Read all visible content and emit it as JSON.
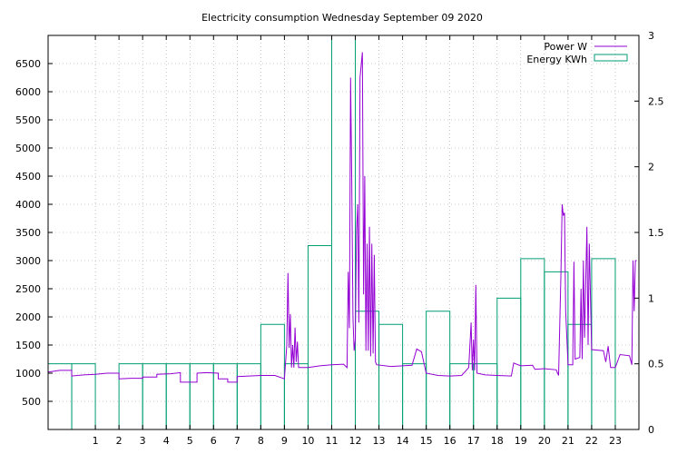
{
  "chart_data": {
    "type": "line",
    "title": "Electricity consumption Wednesday September 09 2020",
    "xlabel": "",
    "ylabel": "",
    "y2label": "",
    "grid": true,
    "legend_position": "top-right",
    "x_range": [
      -1,
      24
    ],
    "y_range": [
      0,
      7000
    ],
    "y2_range": [
      0,
      3
    ],
    "x_ticks": [
      "1",
      "2",
      "3",
      "4",
      "5",
      "6",
      "7",
      "8",
      "9",
      "10",
      "11",
      "12",
      "13",
      "14",
      "15",
      "16",
      "17",
      "18",
      "19",
      "20",
      "21",
      "22",
      "23"
    ],
    "y_ticks": [
      "500",
      "1000",
      "1500",
      "2000",
      "2500",
      "3000",
      "3500",
      "4000",
      "4500",
      "5000",
      "5500",
      "6000",
      "6500"
    ],
    "y2_ticks": [
      "0",
      "0.5",
      "1",
      "1.5",
      "2",
      "2.5",
      "3"
    ],
    "colors": {
      "power": "#9400d3",
      "energy": "#009e73",
      "grid": "#a0a0a0"
    },
    "series": [
      {
        "name": "Power W",
        "kind": "line",
        "axis": "y",
        "points": [
          [
            -1,
            1020
          ],
          [
            -0.5,
            1050
          ],
          [
            0,
            1050
          ],
          [
            0,
            950
          ],
          [
            0.5,
            970
          ],
          [
            1,
            980
          ],
          [
            1.5,
            1000
          ],
          [
            2,
            1000
          ],
          [
            2,
            900
          ],
          [
            2.5,
            910
          ],
          [
            3,
            910
          ],
          [
            3,
            930
          ],
          [
            3.6,
            930
          ],
          [
            3.6,
            980
          ],
          [
            4.2,
            990
          ],
          [
            4.6,
            1010
          ],
          [
            4.6,
            840
          ],
          [
            5,
            840
          ],
          [
            5.3,
            840
          ],
          [
            5.3,
            1000
          ],
          [
            5.7,
            1010
          ],
          [
            6.2,
            1000
          ],
          [
            6.2,
            900
          ],
          [
            6.6,
            900
          ],
          [
            6.6,
            840
          ],
          [
            7,
            840
          ],
          [
            7,
            940
          ],
          [
            7.5,
            950
          ],
          [
            8,
            960
          ],
          [
            8.6,
            960
          ],
          [
            9,
            900
          ],
          [
            9.1,
            1500
          ],
          [
            9.15,
            2780
          ],
          [
            9.2,
            1450
          ],
          [
            9.25,
            2050
          ],
          [
            9.3,
            1100
          ],
          [
            9.35,
            1500
          ],
          [
            9.4,
            1100
          ],
          [
            9.45,
            1810
          ],
          [
            9.5,
            1200
          ],
          [
            9.55,
            1560
          ],
          [
            9.6,
            1100
          ],
          [
            10,
            1100
          ],
          [
            10.5,
            1130
          ],
          [
            11,
            1150
          ],
          [
            11.5,
            1160
          ],
          [
            11.65,
            1100
          ],
          [
            11.7,
            2800
          ],
          [
            11.75,
            1800
          ],
          [
            11.8,
            6250
          ],
          [
            11.85,
            4400
          ],
          [
            11.9,
            2000
          ],
          [
            11.95,
            1400
          ],
          [
            12,
            1600
          ],
          [
            12.05,
            3500
          ],
          [
            12.1,
            4000
          ],
          [
            12.15,
            1900
          ],
          [
            12.2,
            6250
          ],
          [
            12.3,
            6700
          ],
          [
            12.35,
            2400
          ],
          [
            12.4,
            4500
          ],
          [
            12.45,
            1400
          ],
          [
            12.5,
            3300
          ],
          [
            12.55,
            1400
          ],
          [
            12.6,
            3600
          ],
          [
            12.65,
            1300
          ],
          [
            12.7,
            3300
          ],
          [
            12.75,
            1350
          ],
          [
            12.8,
            3100
          ],
          [
            12.85,
            1200
          ],
          [
            12.9,
            1150
          ],
          [
            13.5,
            1120
          ],
          [
            14,
            1130
          ],
          [
            14.4,
            1140
          ],
          [
            14.6,
            1430
          ],
          [
            14.8,
            1380
          ],
          [
            15,
            1000
          ],
          [
            15.5,
            960
          ],
          [
            16,
            950
          ],
          [
            16.5,
            960
          ],
          [
            16.8,
            1100
          ],
          [
            16.9,
            1900
          ],
          [
            16.95,
            1050
          ],
          [
            17,
            1600
          ],
          [
            17.05,
            1050
          ],
          [
            17.1,
            2570
          ],
          [
            17.15,
            1000
          ],
          [
            17.5,
            970
          ],
          [
            18,
            960
          ],
          [
            18.6,
            950
          ],
          [
            18.7,
            1180
          ],
          [
            19,
            1130
          ],
          [
            19.5,
            1140
          ],
          [
            19.6,
            1070
          ],
          [
            20,
            1080
          ],
          [
            20.5,
            1060
          ],
          [
            20.6,
            960
          ],
          [
            20.7,
            2780
          ],
          [
            20.75,
            4000
          ],
          [
            20.8,
            3800
          ],
          [
            20.85,
            3850
          ],
          [
            20.9,
            2100
          ],
          [
            21,
            1150
          ],
          [
            21.2,
            1150
          ],
          [
            21.25,
            2980
          ],
          [
            21.3,
            1250
          ],
          [
            21.5,
            1280
          ],
          [
            21.55,
            2500
          ],
          [
            21.6,
            1250
          ],
          [
            21.65,
            3000
          ],
          [
            21.7,
            1630
          ],
          [
            21.8,
            3600
          ],
          [
            21.85,
            1500
          ],
          [
            21.9,
            3300
          ],
          [
            22,
            1420
          ],
          [
            22.5,
            1400
          ],
          [
            22.6,
            1200
          ],
          [
            22.7,
            1480
          ],
          [
            22.8,
            1100
          ],
          [
            23,
            1100
          ],
          [
            23.2,
            1330
          ],
          [
            23.6,
            1310
          ],
          [
            23.7,
            1150
          ],
          [
            23.75,
            3000
          ],
          [
            23.8,
            2100
          ],
          [
            23.85,
            3000
          ],
          [
            23.9,
            3000
          ]
        ]
      },
      {
        "name": "Energy KWh",
        "kind": "steps",
        "axis": "y2",
        "bars": [
          [
            -1,
            0.5
          ],
          [
            0,
            0.5
          ],
          [
            1,
            0
          ],
          [
            2,
            0.5
          ],
          [
            3,
            0.5
          ],
          [
            4,
            0.5
          ],
          [
            5,
            0.5
          ],
          [
            6,
            0.5
          ],
          [
            7,
            0.5
          ],
          [
            8,
            0.8
          ],
          [
            9,
            0.5
          ],
          [
            10,
            1.4
          ],
          [
            11,
            3.0
          ],
          [
            12,
            0.9
          ],
          [
            13,
            0.8
          ],
          [
            14,
            0.5
          ],
          [
            15,
            0.9
          ],
          [
            16,
            0.5
          ],
          [
            17,
            0.5
          ],
          [
            18,
            1.0
          ],
          [
            19,
            1.3
          ],
          [
            20,
            1.2
          ],
          [
            21,
            0.8
          ],
          [
            22,
            1.3
          ],
          [
            23,
            0
          ]
        ]
      }
    ]
  }
}
